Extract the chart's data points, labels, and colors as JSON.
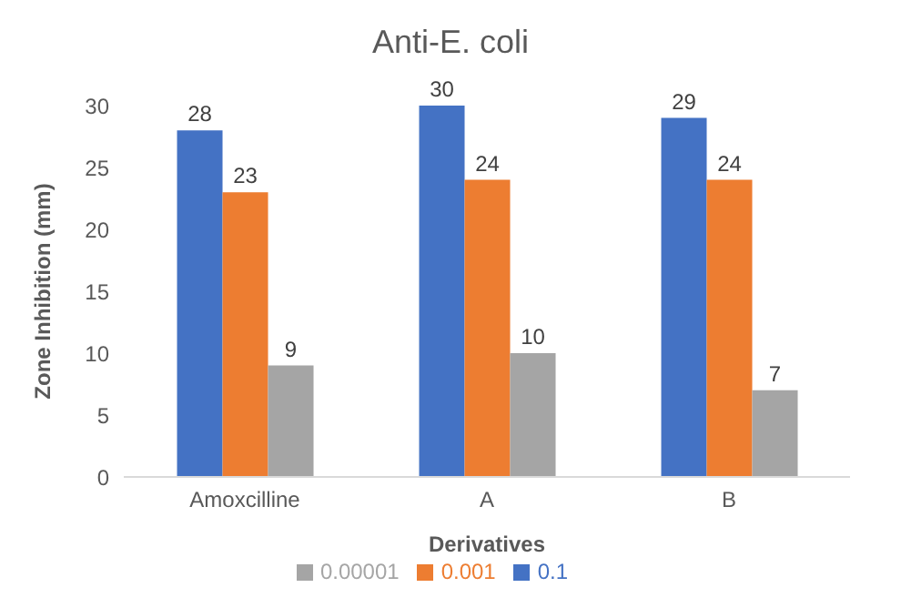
{
  "chart_data": {
    "type": "bar",
    "title": "Anti-E. coli",
    "xlabel": "Derivatives",
    "ylabel": "Zone Inhibition (mm)",
    "categories": [
      "Amoxcilline",
      "A",
      "B"
    ],
    "series": [
      {
        "name": "0.1",
        "color": "#4472c4",
        "values": [
          28,
          30,
          29
        ]
      },
      {
        "name": "0.001",
        "color": "#ed7d31",
        "values": [
          23,
          24,
          24
        ]
      },
      {
        "name": "0.00001",
        "color": "#a5a5a5",
        "values": [
          9,
          10,
          7
        ]
      }
    ],
    "ylim": [
      0,
      30
    ],
    "yticks": [
      0,
      5,
      10,
      15,
      20,
      25,
      30
    ],
    "data_labels": true,
    "legend": "bottom",
    "grid": false
  }
}
